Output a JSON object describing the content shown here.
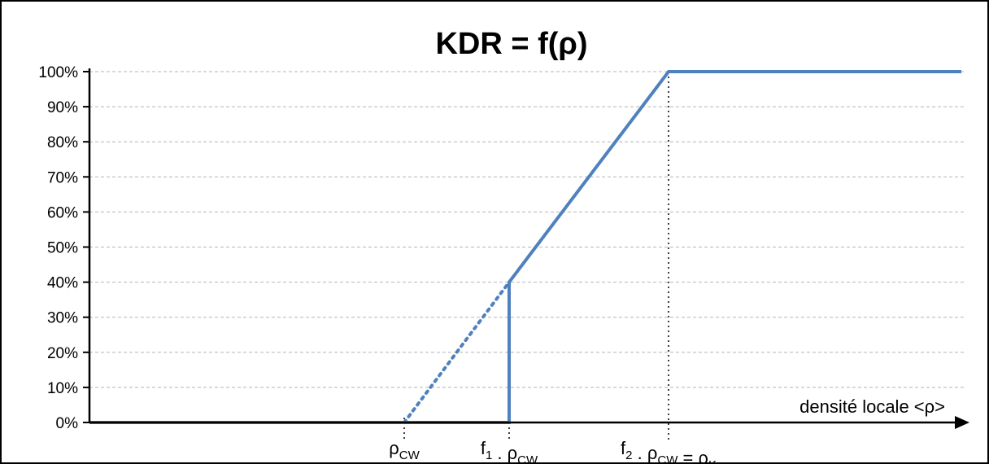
{
  "chart_data": {
    "type": "line",
    "title": "KDR = f(ρ)",
    "xlabel": "densité locale <ρ>",
    "ylabel": "",
    "ylim": [
      0,
      100
    ],
    "yticks": [
      "0%",
      "10%",
      "20%",
      "30%",
      "40%",
      "50%",
      "60%",
      "70%",
      "80%",
      "90%",
      "100%"
    ],
    "grid": true,
    "x_markers": [
      {
        "label_main": "ρ",
        "label_sub": "CW",
        "label_suffix": ""
      },
      {
        "label_pre": "f",
        "pre_sub": "1",
        "label_main": " . ρ",
        "label_sub": "CW",
        "label_suffix": ""
      },
      {
        "label_pre": "f",
        "pre_sub": "2",
        "label_main": " . ρ",
        "label_sub": "CW",
        "label_suffix": " = ρ",
        "suffix_sub": "K"
      }
    ],
    "series": [
      {
        "style": "solid",
        "color": "#4F81BD",
        "points": [
          [
            0,
            0
          ],
          [
            1.0,
            0
          ],
          [
            1.0,
            40
          ],
          [
            1.53,
            100
          ],
          [
            2.85,
            100
          ]
        ]
      },
      {
        "style": "dotted",
        "color": "#4F81BD",
        "points": [
          [
            0,
            0
          ],
          [
            1.0,
            40
          ]
        ]
      }
    ]
  }
}
